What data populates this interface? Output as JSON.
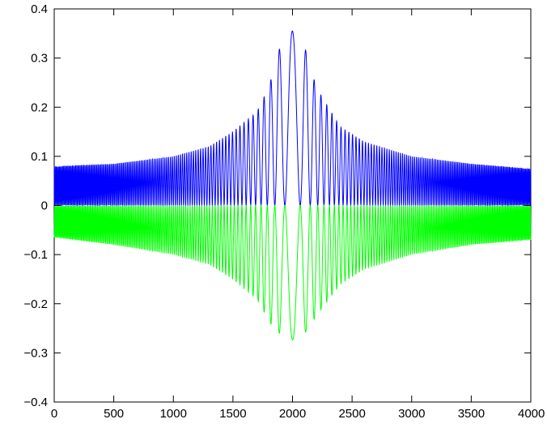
{
  "chart_data": {
    "type": "line",
    "title": "",
    "xlabel": "",
    "ylabel": "",
    "xlim": [
      0,
      4000
    ],
    "ylim": [
      -0.4,
      0.4
    ],
    "grid": false,
    "legend": "none",
    "x_ticks": [
      {
        "value": 0,
        "label": "0"
      },
      {
        "value": 500,
        "label": "500"
      },
      {
        "value": 1000,
        "label": "1000"
      },
      {
        "value": 1500,
        "label": "1500"
      },
      {
        "value": 2000,
        "label": "2000"
      },
      {
        "value": 2500,
        "label": "2500"
      },
      {
        "value": 3000,
        "label": "3000"
      },
      {
        "value": 3500,
        "label": "3500"
      },
      {
        "value": 4000,
        "label": "4000"
      }
    ],
    "y_ticks": [
      {
        "value": -0.4,
        "label": "−0.4"
      },
      {
        "value": -0.3,
        "label": "−0.3"
      },
      {
        "value": -0.2,
        "label": "−0.2"
      },
      {
        "value": -0.1,
        "label": "−0.1"
      },
      {
        "value": 0,
        "label": "0"
      },
      {
        "value": 0.1,
        "label": "0.1"
      },
      {
        "value": 0.2,
        "label": "0.2"
      },
      {
        "value": 0.3,
        "label": "0.3"
      },
      {
        "value": 0.4,
        "label": "0.4"
      }
    ],
    "series": [
      {
        "color": "#0000ff",
        "center": 2000,
        "envelope_points": [
          [
            0,
            0.08
          ],
          [
            500,
            0.085
          ],
          [
            1000,
            0.1
          ],
          [
            1300,
            0.12
          ],
          [
            1500,
            0.15
          ],
          [
            1700,
            0.19
          ],
          [
            1800,
            0.24
          ],
          [
            1950,
            0.37
          ],
          [
            2100,
            0.325
          ],
          [
            2200,
            0.24
          ],
          [
            2400,
            0.16
          ],
          [
            2600,
            0.13
          ],
          [
            3000,
            0.1
          ],
          [
            3500,
            0.085
          ],
          [
            4000,
            0.075
          ]
        ],
        "baseline_points": [
          [
            0,
            0.0
          ],
          [
            500,
            0.0
          ],
          [
            1000,
            0.0
          ],
          [
            1500,
            0.0
          ],
          [
            2000,
            0.0
          ],
          [
            2500,
            0.0
          ],
          [
            3000,
            0.0
          ],
          [
            3500,
            0.0
          ],
          [
            4000,
            0.0
          ]
        ]
      },
      {
        "color": "#00ff00",
        "center": 2000,
        "envelope_points": [
          [
            0,
            -0.065
          ],
          [
            500,
            -0.08
          ],
          [
            1000,
            -0.1
          ],
          [
            1300,
            -0.12
          ],
          [
            1500,
            -0.15
          ],
          [
            1700,
            -0.19
          ],
          [
            1850,
            -0.255
          ],
          [
            2050,
            -0.28
          ],
          [
            2200,
            -0.225
          ],
          [
            2400,
            -0.16
          ],
          [
            2600,
            -0.13
          ],
          [
            3000,
            -0.1
          ],
          [
            3500,
            -0.08
          ],
          [
            4000,
            -0.07
          ]
        ],
        "baseline_points": [
          [
            0,
            0.0
          ],
          [
            500,
            0.0
          ],
          [
            1000,
            0.0
          ],
          [
            1500,
            0.0
          ],
          [
            2000,
            0.0
          ],
          [
            2500,
            0.0
          ],
          [
            3000,
            0.0
          ],
          [
            3500,
            0.0
          ],
          [
            4000,
            0.0
          ]
        ]
      }
    ]
  }
}
